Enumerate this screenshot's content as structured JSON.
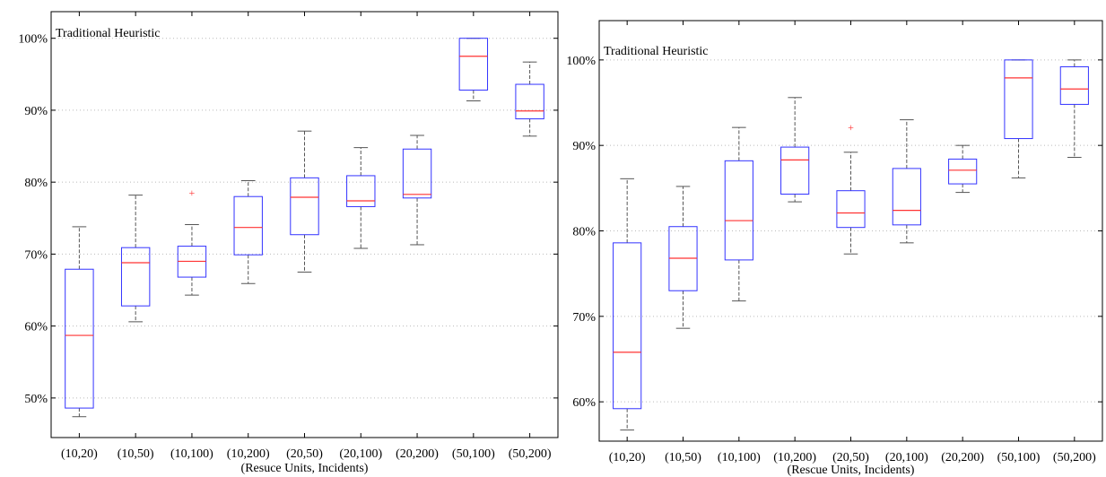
{
  "colors": {
    "box": "#3333ff",
    "median": "#ff3333",
    "whisker": "#555555",
    "outlier": "#ff3333",
    "grid": "#bbbbbb",
    "axis": "#000000"
  },
  "chart_data": [
    {
      "type": "box",
      "title": "Traditional Heuristic",
      "xlabel": "(Resuce Units, Incidents)",
      "ylabel": "",
      "categories": [
        "(10,20)",
        "(10,50)",
        "(10,100)",
        "(10,200)",
        "(20,50)",
        "(20,100)",
        "(20,200)",
        "(50,100)",
        "(50,200)"
      ],
      "ylim": [
        0.445,
        1.037
      ],
      "yticks": [
        0.5,
        0.6,
        0.7,
        0.8,
        0.9,
        1.0
      ],
      "ytick_labels": [
        "50%",
        "60%",
        "70%",
        "80%",
        "90%",
        "100%"
      ],
      "grid": "horizontal dotted",
      "boxes": [
        {
          "whisker_low": 0.474,
          "q1": 0.486,
          "median": 0.587,
          "q3": 0.679,
          "whisker_high": 0.738,
          "outliers": []
        },
        {
          "whisker_low": 0.606,
          "q1": 0.628,
          "median": 0.688,
          "q3": 0.709,
          "whisker_high": 0.782,
          "outliers": []
        },
        {
          "whisker_low": 0.643,
          "q1": 0.668,
          "median": 0.69,
          "q3": 0.711,
          "whisker_high": 0.741,
          "outliers": [
            0.785
          ]
        },
        {
          "whisker_low": 0.659,
          "q1": 0.699,
          "median": 0.737,
          "q3": 0.78,
          "whisker_high": 0.802,
          "outliers": []
        },
        {
          "whisker_low": 0.675,
          "q1": 0.727,
          "median": 0.779,
          "q3": 0.806,
          "whisker_high": 0.871,
          "outliers": []
        },
        {
          "whisker_low": 0.708,
          "q1": 0.766,
          "median": 0.774,
          "q3": 0.809,
          "whisker_high": 0.848,
          "outliers": []
        },
        {
          "whisker_low": 0.713,
          "q1": 0.778,
          "median": 0.783,
          "q3": 0.846,
          "whisker_high": 0.865,
          "outliers": []
        },
        {
          "whisker_low": 0.913,
          "q1": 0.928,
          "median": 0.975,
          "q3": 1.0,
          "whisker_high": 1.0,
          "outliers": []
        },
        {
          "whisker_low": 0.864,
          "q1": 0.888,
          "median": 0.899,
          "q3": 0.936,
          "whisker_high": 0.967,
          "outliers": []
        }
      ]
    },
    {
      "type": "box",
      "title": "Traditional Heuristic",
      "xlabel": "(Rescue Units, Incidents)",
      "ylabel": "",
      "categories": [
        "(10,20)",
        "(10,50)",
        "(10,100)",
        "(10,200)",
        "(20,50)",
        "(20,100)",
        "(20,200)",
        "(50,100)",
        "(50,200)"
      ],
      "ylim": [
        0.554,
        1.046
      ],
      "yticks": [
        0.6,
        0.7,
        0.8,
        0.9,
        1.0
      ],
      "ytick_labels": [
        "60%",
        "70%",
        "80%",
        "90%",
        "100%"
      ],
      "grid": "horizontal dotted",
      "boxes": [
        {
          "whisker_low": 0.567,
          "q1": 0.592,
          "median": 0.658,
          "q3": 0.786,
          "whisker_high": 0.861,
          "outliers": []
        },
        {
          "whisker_low": 0.686,
          "q1": 0.73,
          "median": 0.768,
          "q3": 0.805,
          "whisker_high": 0.852,
          "outliers": []
        },
        {
          "whisker_low": 0.718,
          "q1": 0.766,
          "median": 0.812,
          "q3": 0.882,
          "whisker_high": 0.921,
          "outliers": []
        },
        {
          "whisker_low": 0.834,
          "q1": 0.843,
          "median": 0.883,
          "q3": 0.898,
          "whisker_high": 0.956,
          "outliers": []
        },
        {
          "whisker_low": 0.773,
          "q1": 0.804,
          "median": 0.821,
          "q3": 0.847,
          "whisker_high": 0.892,
          "outliers": [
            0.921
          ]
        },
        {
          "whisker_low": 0.786,
          "q1": 0.807,
          "median": 0.824,
          "q3": 0.873,
          "whisker_high": 0.93,
          "outliers": []
        },
        {
          "whisker_low": 0.845,
          "q1": 0.855,
          "median": 0.871,
          "q3": 0.884,
          "whisker_high": 0.9,
          "outliers": []
        },
        {
          "whisker_low": 0.862,
          "q1": 0.908,
          "median": 0.979,
          "q3": 1.0,
          "whisker_high": 1.0,
          "outliers": []
        },
        {
          "whisker_low": 0.886,
          "q1": 0.948,
          "median": 0.966,
          "q3": 0.992,
          "whisker_high": 1.0,
          "outliers": []
        }
      ]
    }
  ]
}
